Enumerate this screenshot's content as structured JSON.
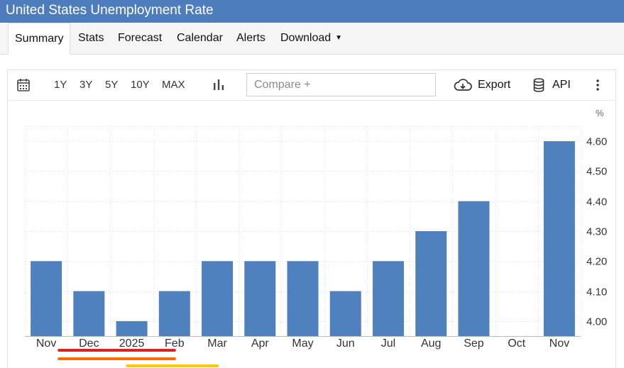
{
  "window": {
    "title": "United States Unemployment Rate"
  },
  "tabs": [
    {
      "label": "Summary"
    },
    {
      "label": "Stats"
    },
    {
      "label": "Forecast"
    },
    {
      "label": "Calendar"
    },
    {
      "label": "Alerts"
    },
    {
      "label": "Download"
    }
  ],
  "toolbar": {
    "ranges": [
      "1Y",
      "3Y",
      "5Y",
      "10Y",
      "MAX"
    ],
    "compare_placeholder": "Compare +",
    "export_label": "Export",
    "api_label": "API",
    "icons": [
      "calendar-icon",
      "bar-chart-icon",
      "cloud-download-icon",
      "database-icon",
      "more-vertical-icon"
    ]
  },
  "colors": {
    "header": "#4d7dbd",
    "bar": "#4e81be",
    "grid": "#e3e3e3"
  },
  "chart_data": {
    "type": "bar",
    "unit_label": "%",
    "categories": [
      "Nov",
      "Dec",
      "2025",
      "Feb",
      "Mar",
      "Apr",
      "May",
      "Jun",
      "Jul",
      "Aug",
      "Sep",
      "Oct",
      "Nov"
    ],
    "values": [
      4.2,
      4.1,
      4.0,
      4.1,
      4.2,
      4.2,
      4.2,
      4.1,
      4.2,
      4.3,
      4.4,
      null,
      4.6
    ],
    "y_ticks": [
      "4.00",
      "4.10",
      "4.20",
      "4.30",
      "4.40",
      "4.50",
      "4.60"
    ],
    "ylim": [
      3.95,
      4.65
    ],
    "y_axis_side": "right",
    "grid": true,
    "annotations": [
      {
        "type": "underline",
        "from_category": 1,
        "to_category": 3,
        "color": "#e02020"
      },
      {
        "type": "underline",
        "from_category": 1,
        "to_category": 3,
        "color": "#ff6a00"
      },
      {
        "type": "underline",
        "from_category": 2,
        "to_category": 4,
        "color": "#ffc800"
      }
    ]
  }
}
